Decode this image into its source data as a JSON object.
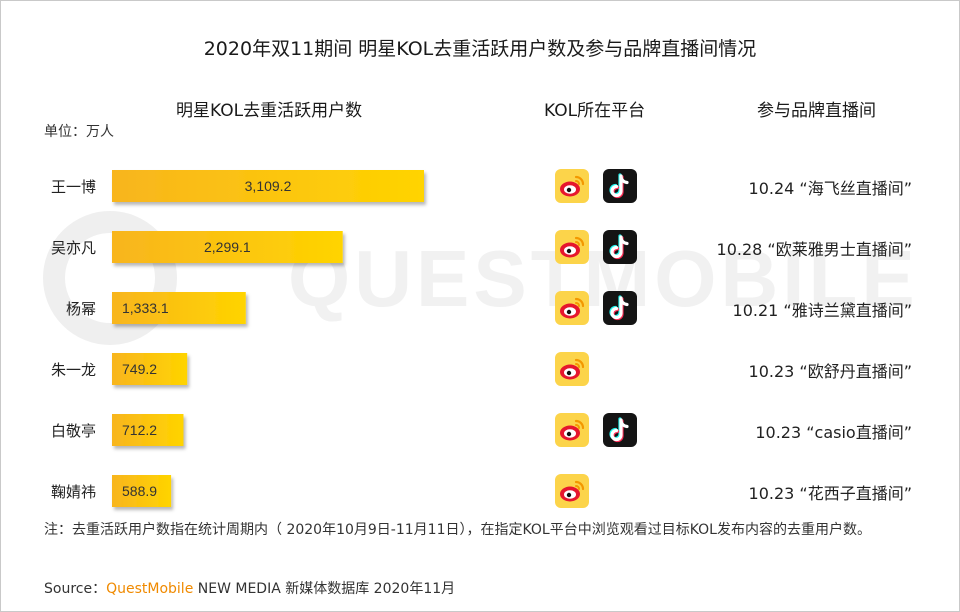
{
  "title": "2020年双11期间 明星KOL去重活跃用户数及参与品牌直播间情况",
  "columns": {
    "users": "明星KOL去重活跃用户数",
    "platform": "KOL所在平台",
    "brand": "参与品牌直播间"
  },
  "unit": "单位：万人",
  "watermark": "QUESTMOBILE",
  "rows": [
    {
      "name": "王一博",
      "value_label": "3,109.2",
      "platforms": [
        "weibo",
        "douyin"
      ],
      "brand": "10.24 “海飞丝直播间”"
    },
    {
      "name": "吴亦凡",
      "value_label": "2,299.1",
      "platforms": [
        "weibo",
        "douyin"
      ],
      "brand": "10.28 “欧莱雅男士直播间”"
    },
    {
      "name": "杨幂",
      "value_label": "1,333.1",
      "platforms": [
        "weibo",
        "douyin"
      ],
      "brand": "10.21 “雅诗兰黛直播间”"
    },
    {
      "name": "朱一龙",
      "value_label": "749.2",
      "platforms": [
        "weibo"
      ],
      "brand": "10.23 “欧舒丹直播间”"
    },
    {
      "name": "白敬亭",
      "value_label": "712.2",
      "platforms": [
        "weibo",
        "douyin"
      ],
      "brand": "10.23 “casio直播间”"
    },
    {
      "name": "鞠婧祎",
      "value_label": "588.9",
      "platforms": [
        "weibo"
      ],
      "brand": "10.23 “花西子直播间”"
    }
  ],
  "note": "注：去重活跃用户数指在统计周期内（ 2020年10月9日-11月11日），在指定KOL平台中浏览观看过目标KOL发布内容的去重用户数。",
  "source": {
    "prefix": "Source：",
    "brand": "QuestMobile",
    "suffix": " NEW MEDIA 新媒体数据库 2020年11月"
  },
  "colors": {
    "bar_start": "#f8b51e",
    "bar_end": "#ffd400",
    "weibo_bg": "#fcd44a",
    "weibo_red": "#e6162d",
    "douyin_bg": "#141414",
    "brand_orange": "#f08a00"
  },
  "chart_data": {
    "type": "bar",
    "orientation": "horizontal",
    "categories": [
      "王一博",
      "吴亦凡",
      "杨幂",
      "朱一龙",
      "白敬亭",
      "鞠婧祎"
    ],
    "values": [
      3109.2,
      2299.1,
      1333.1,
      749.2,
      712.2,
      588.9
    ],
    "data_labels": [
      "3,109.2",
      "2,299.1",
      "1,333.1",
      "749.2",
      "712.2",
      "588.9"
    ],
    "xlim": [
      0,
      3109.2
    ],
    "grid": false,
    "legend": "none"
  }
}
